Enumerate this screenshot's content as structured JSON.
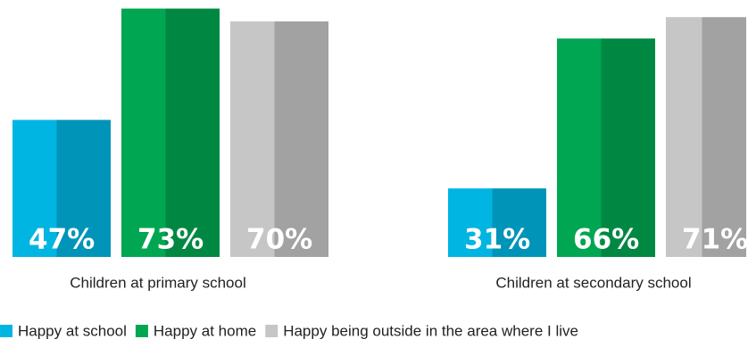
{
  "chart_data": {
    "type": "bar",
    "categories": [
      "Children at primary school",
      "Children at secondary school"
    ],
    "series": [
      {
        "name": "Happy at school",
        "color": "#00b5e2",
        "values": [
          47,
          31
        ],
        "value_labels": [
          "47%",
          "31%"
        ]
      },
      {
        "name": "Happy at home",
        "color": "#00a651",
        "values": [
          73,
          66
        ],
        "value_labels": [
          "73%",
          "66%"
        ]
      },
      {
        "name": "Happy being outside in the area where I live",
        "color": "#c6c6c6",
        "values": [
          70,
          71
        ],
        "value_labels": [
          "70%",
          "71%"
        ]
      }
    ],
    "ylim": [
      15,
      75
    ]
  }
}
